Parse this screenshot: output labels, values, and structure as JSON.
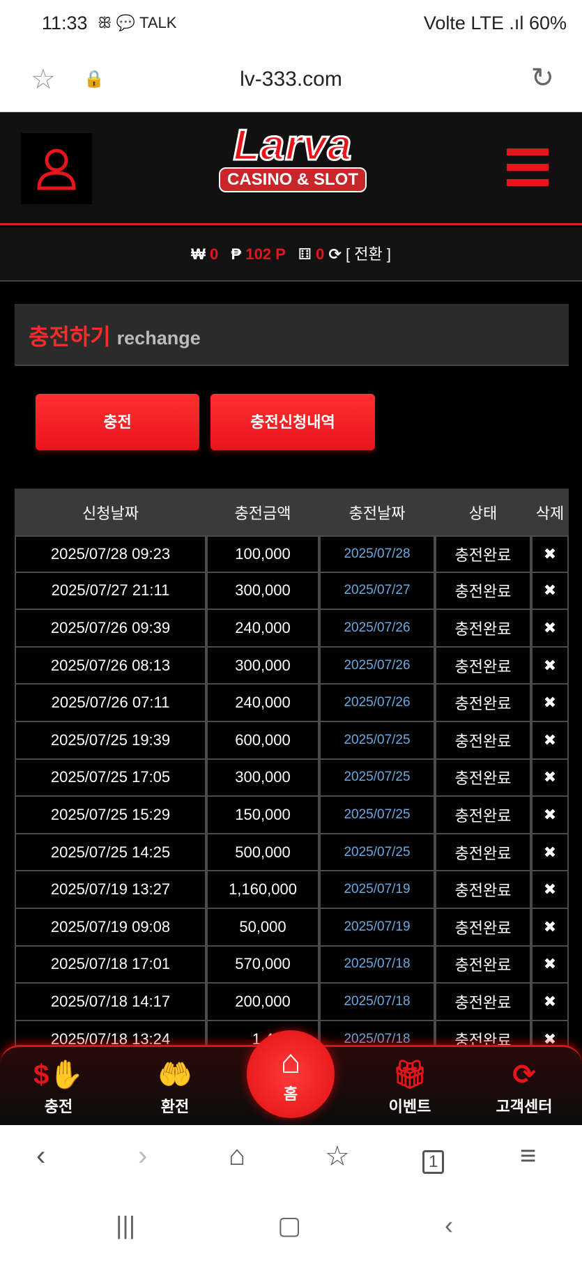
{
  "status_bar": {
    "time": "11:33",
    "icons": "ꕥ 💬 TALK",
    "network": "Volte LTE .ıl",
    "battery": "60%"
  },
  "browser": {
    "url": "lv-333.com"
  },
  "header": {
    "logo_main": "Larva",
    "logo_sub": "CASINO & SLOT"
  },
  "balance": {
    "won_symbol": "₩",
    "won": "0",
    "point_symbol": "₱",
    "points": "102 P",
    "chip": "0",
    "convert": "[ 전환 ]"
  },
  "panel": {
    "title_ko": "충전하기",
    "title_en": "rechange"
  },
  "buttons": {
    "charge": "충전",
    "history": "충전신청내역"
  },
  "table": {
    "headers": [
      "신청날짜",
      "충전금액",
      "충전날짜",
      "상태",
      "삭제"
    ],
    "rows": [
      [
        "2025/07/28 09:23",
        "100,000",
        "2025/07/28",
        "충전완료",
        "✖"
      ],
      [
        "2025/07/27 21:11",
        "300,000",
        "2025/07/27",
        "충전완료",
        "✖"
      ],
      [
        "2025/07/26 09:39",
        "240,000",
        "2025/07/26",
        "충전완료",
        "✖"
      ],
      [
        "2025/07/26 08:13",
        "300,000",
        "2025/07/26",
        "충전완료",
        "✖"
      ],
      [
        "2025/07/26 07:11",
        "240,000",
        "2025/07/26",
        "충전완료",
        "✖"
      ],
      [
        "2025/07/25 19:39",
        "600,000",
        "2025/07/25",
        "충전완료",
        "✖"
      ],
      [
        "2025/07/25 17:05",
        "300,000",
        "2025/07/25",
        "충전완료",
        "✖"
      ],
      [
        "2025/07/25 15:29",
        "150,000",
        "2025/07/25",
        "충전완료",
        "✖"
      ],
      [
        "2025/07/25 14:25",
        "500,000",
        "2025/07/25",
        "충전완료",
        "✖"
      ],
      [
        "2025/07/19 13:27",
        "1,160,000",
        "2025/07/19",
        "충전완료",
        "✖"
      ],
      [
        "2025/07/19 09:08",
        "50,000",
        "2025/07/19",
        "충전완료",
        "✖"
      ],
      [
        "2025/07/18 17:01",
        "570,000",
        "2025/07/18",
        "충전완료",
        "✖"
      ],
      [
        "2025/07/18 14:17",
        "200,000",
        "2025/07/18",
        "충전완료",
        "✖"
      ],
      [
        "2025/07/18 13:24",
        "1,4",
        "2025/07/18",
        "충전완료",
        "✖"
      ]
    ]
  },
  "bottom_nav": {
    "charge": "충전",
    "exchange": "환전",
    "home": "홈",
    "event": "이벤트",
    "support": "고객센터"
  },
  "browser_nav": {
    "tabs_count": "1"
  }
}
